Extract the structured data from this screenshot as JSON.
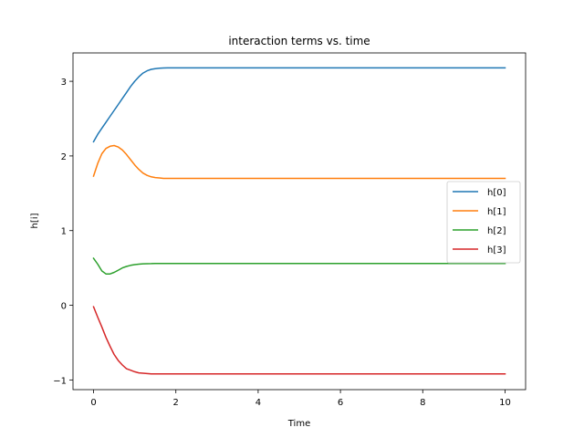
{
  "chart_data": {
    "type": "line",
    "title": "interaction terms vs. time",
    "xlabel": "Time",
    "ylabel": "h[i]",
    "xlim": [
      -0.5,
      10.5
    ],
    "ylim": [
      -1.13,
      3.38
    ],
    "xticks": [
      0,
      2,
      4,
      6,
      8,
      10
    ],
    "yticks": [
      -1,
      0,
      1,
      2,
      3
    ],
    "grid": false,
    "legend_position": "right",
    "x": [
      0,
      0.1,
      0.2,
      0.3,
      0.4,
      0.5,
      0.6,
      0.7,
      0.8,
      0.9,
      1.0,
      1.1,
      1.2,
      1.3,
      1.4,
      1.5,
      1.6,
      1.7,
      1.8,
      1.9,
      2.0,
      2.5,
      3,
      4,
      5,
      6,
      7,
      8,
      9,
      10
    ],
    "series": [
      {
        "name": "h[0]",
        "color": "#1f77b4",
        "values": [
          2.19,
          2.29,
          2.37,
          2.45,
          2.53,
          2.61,
          2.69,
          2.77,
          2.85,
          2.93,
          3.0,
          3.06,
          3.11,
          3.14,
          3.16,
          3.17,
          3.175,
          3.178,
          3.18,
          3.18,
          3.18,
          3.18,
          3.18,
          3.18,
          3.18,
          3.18,
          3.18,
          3.18,
          3.18,
          3.18
        ]
      },
      {
        "name": "h[1]",
        "color": "#ff7f0e",
        "values": [
          1.73,
          1.9,
          2.03,
          2.1,
          2.13,
          2.14,
          2.12,
          2.08,
          2.02,
          1.95,
          1.88,
          1.82,
          1.77,
          1.74,
          1.72,
          1.71,
          1.705,
          1.7,
          1.7,
          1.7,
          1.7,
          1.7,
          1.7,
          1.7,
          1.7,
          1.7,
          1.7,
          1.7,
          1.7,
          1.7
        ]
      },
      {
        "name": "h[2]",
        "color": "#2ca02c",
        "values": [
          0.63,
          0.55,
          0.46,
          0.42,
          0.42,
          0.44,
          0.47,
          0.5,
          0.52,
          0.535,
          0.545,
          0.55,
          0.555,
          0.557,
          0.558,
          0.56,
          0.56,
          0.56,
          0.56,
          0.56,
          0.56,
          0.56,
          0.56,
          0.56,
          0.56,
          0.56,
          0.56,
          0.56,
          0.56,
          0.56
        ]
      },
      {
        "name": "h[3]",
        "color": "#d62728",
        "values": [
          -0.02,
          -0.16,
          -0.29,
          -0.43,
          -0.55,
          -0.66,
          -0.74,
          -0.8,
          -0.85,
          -0.87,
          -0.89,
          -0.905,
          -0.91,
          -0.915,
          -0.918,
          -0.92,
          -0.92,
          -0.92,
          -0.92,
          -0.92,
          -0.92,
          -0.92,
          -0.92,
          -0.92,
          -0.92,
          -0.92,
          -0.92,
          -0.92,
          -0.92,
          -0.92
        ]
      }
    ]
  }
}
